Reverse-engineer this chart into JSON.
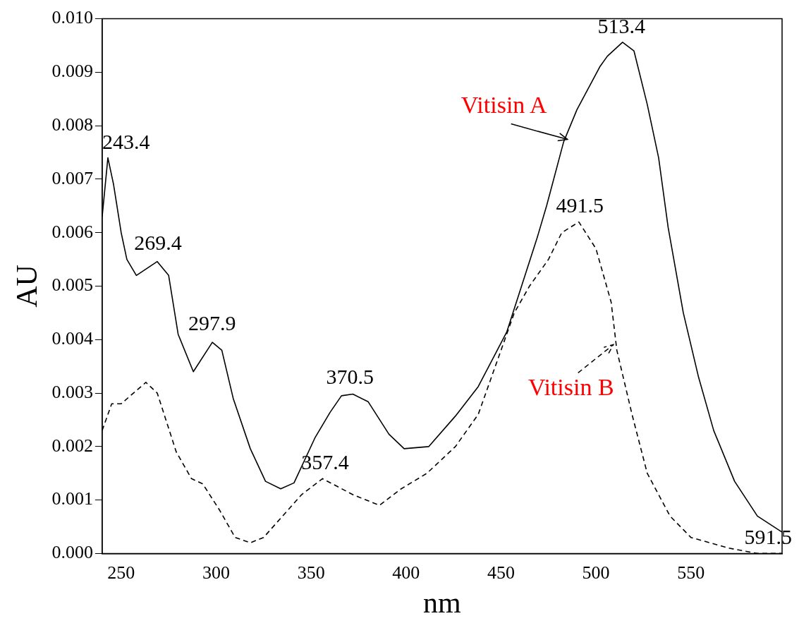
{
  "chart_data": {
    "type": "line",
    "xlabel": "nm",
    "ylabel": "AU",
    "xlim": [
      240,
      598
    ],
    "xticks": [
      250,
      300,
      350,
      400,
      450,
      500,
      550
    ],
    "ylim": [
      0,
      0.01
    ],
    "yticks": [
      {
        "value": 0,
        "label": "0.000"
      },
      {
        "value": 0.001,
        "label": "0.001"
      },
      {
        "value": 0.002,
        "label": "0.002"
      },
      {
        "value": 0.003,
        "label": "0.003"
      },
      {
        "value": 0.004,
        "label": "0.004"
      },
      {
        "value": 0.005,
        "label": "0.005"
      },
      {
        "value": 0.006,
        "label": "0.006"
      },
      {
        "value": 0.007,
        "label": "0.007"
      },
      {
        "value": 0.008,
        "label": "0.008"
      },
      {
        "value": 0.009,
        "label": "0.009"
      },
      {
        "value": 0.01,
        "label": "0.010"
      }
    ],
    "grid": false,
    "legend": "right",
    "marker": "none",
    "series": [
      {
        "name": "Vitisin A",
        "color": "#000000",
        "line_style": "solid",
        "x": [
          240,
          243,
          246,
          250,
          253,
          258,
          269,
          275,
          280,
          288,
          298,
          303,
          309,
          318,
          326,
          334,
          341,
          352,
          360,
          366,
          372,
          380,
          391,
          399,
          412,
          426,
          438,
          453,
          461,
          469,
          474,
          483,
          490,
          502,
          506,
          514,
          520,
          527,
          533,
          538,
          546,
          554,
          562,
          573,
          585,
          598
        ],
        "values": [
          0.0063,
          0.0074,
          0.0069,
          0.006,
          0.0055,
          0.0052,
          0.00546,
          0.0052,
          0.0041,
          0.0034,
          0.00395,
          0.0038,
          0.0029,
          0.00196,
          0.00135,
          0.00121,
          0.00132,
          0.00216,
          0.00264,
          0.00295,
          0.00298,
          0.00284,
          0.00223,
          0.00196,
          0.002,
          0.00257,
          0.00312,
          0.00414,
          0.00502,
          0.0059,
          0.0065,
          0.0077,
          0.0083,
          0.0091,
          0.0093,
          0.00956,
          0.0094,
          0.0084,
          0.0074,
          0.0061,
          0.0045,
          0.0033,
          0.0023,
          0.00135,
          0.0007,
          0.0004
        ]
      },
      {
        "name": "Vitisin B",
        "color": "#000000",
        "line_style": "dashed",
        "x": [
          240,
          245,
          250,
          263,
          269,
          279,
          287,
          293,
          302,
          310,
          318,
          325,
          335,
          345,
          356,
          372,
          386,
          397,
          411,
          426,
          438,
          449,
          457,
          465,
          475,
          482,
          491,
          500,
          508,
          511,
          519,
          527,
          539,
          550,
          570,
          585,
          598
        ],
        "values": [
          0.0023,
          0.0028,
          0.0028,
          0.0032,
          0.003,
          0.0019,
          0.0014,
          0.0013,
          0.0008,
          0.0003,
          0.0002,
          0.0003,
          0.0007,
          0.0011,
          0.0014,
          0.0011,
          0.0009,
          0.0012,
          0.0015,
          0.002,
          0.0026,
          0.0037,
          0.0045,
          0.005,
          0.0055,
          0.006,
          0.0062,
          0.0057,
          0.0047,
          0.0038,
          0.0026,
          0.0015,
          0.0007,
          0.0003,
          0.0001,
          0,
          0
        ]
      }
    ],
    "annotations": [
      {
        "text": "243.4",
        "x": 243.4,
        "y": 0.0074
      },
      {
        "text": "269.4",
        "x": 269.4,
        "y": 0.0055
      },
      {
        "text": "297.9",
        "x": 297.9,
        "y": 0.004
      },
      {
        "text": "370.5",
        "x": 370.5,
        "y": 0.003
      },
      {
        "text": "357.4",
        "x": 357.4,
        "y": 0.0014
      },
      {
        "text": "513.4",
        "x": 513.4,
        "y": 0.00956
      },
      {
        "text": "491.5",
        "x": 491.5,
        "y": 0.0062
      },
      {
        "text": "591.5",
        "x": 591.5,
        "y": 0
      }
    ]
  }
}
